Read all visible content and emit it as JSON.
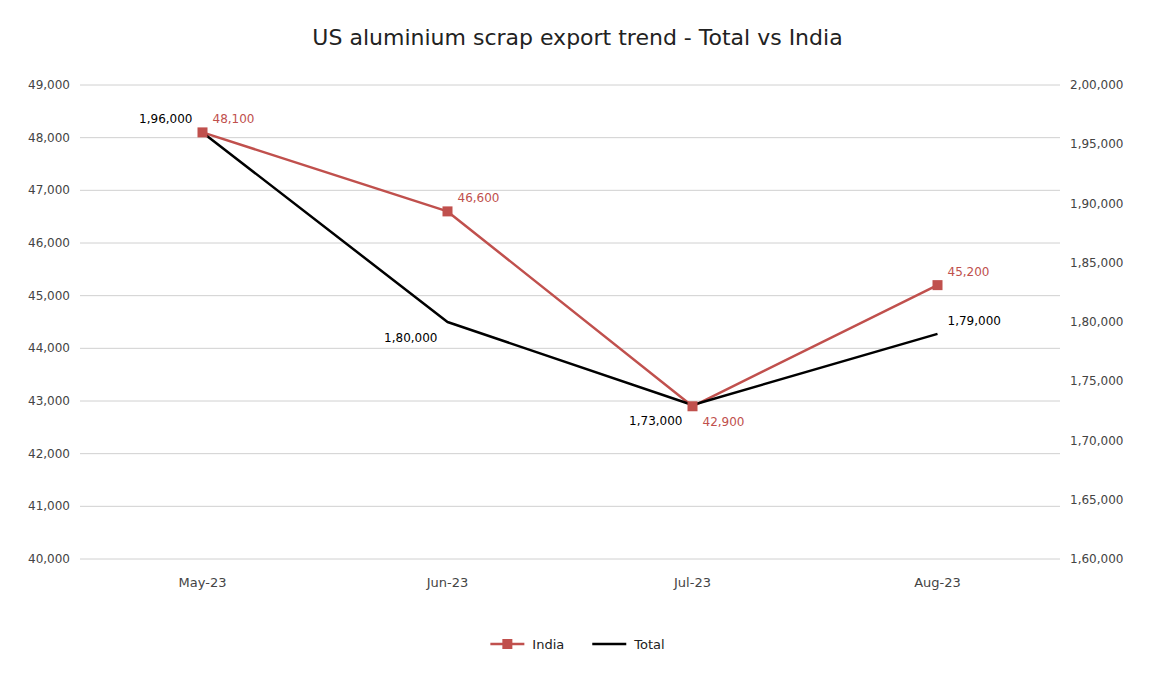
{
  "chart_data": {
    "type": "line",
    "title": "US aluminium scrap export trend - Total vs India",
    "categories": [
      "May-23",
      "Jun-23",
      "Jul-23",
      "Aug-23"
    ],
    "series": [
      {
        "name": "India",
        "color": "#C0504D",
        "marker": "square",
        "values": [
          48100,
          46600,
          42900,
          45200
        ],
        "value_labels": [
          "48,100",
          "46,600",
          "42,900",
          "45,200"
        ]
      },
      {
        "name": "Total",
        "color": "#000000",
        "marker": "none",
        "axis": "y2",
        "values": [
          196000,
          180000,
          173000,
          179000
        ],
        "value_labels": [
          "1,96,000",
          "1,80,000",
          "1,73,000",
          "1,79,000"
        ]
      }
    ],
    "ylim": [
      40000,
      49000
    ],
    "yticks": [
      {
        "value": 40000,
        "label": "40,000"
      },
      {
        "value": 41000,
        "label": "41,000"
      },
      {
        "value": 42000,
        "label": "42,000"
      },
      {
        "value": 43000,
        "label": "43,000"
      },
      {
        "value": 44000,
        "label": "44,000"
      },
      {
        "value": 45000,
        "label": "45,000"
      },
      {
        "value": 46000,
        "label": "46,000"
      },
      {
        "value": 47000,
        "label": "47,000"
      },
      {
        "value": 48000,
        "label": "48,000"
      },
      {
        "value": 49000,
        "label": "49,000"
      }
    ],
    "y2lim": [
      160000,
      200000
    ],
    "y2ticks": [
      {
        "value": 160000,
        "label": "1,60,000"
      },
      {
        "value": 165000,
        "label": "1,65,000"
      },
      {
        "value": 170000,
        "label": "1,70,000"
      },
      {
        "value": 175000,
        "label": "1,75,000"
      },
      {
        "value": 180000,
        "label": "1,80,000"
      },
      {
        "value": 185000,
        "label": "1,85,000"
      },
      {
        "value": 190000,
        "label": "1,90,000"
      },
      {
        "value": 195000,
        "label": "1,95,000"
      },
      {
        "value": 200000,
        "label": "2,00,000"
      }
    ],
    "grid": true,
    "legend": "bottom",
    "data_labels": true
  }
}
